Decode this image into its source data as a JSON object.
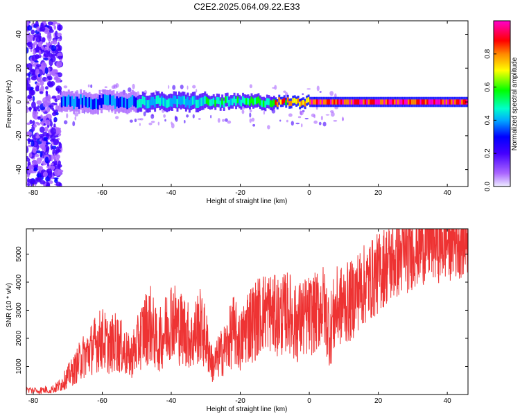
{
  "title": "C2E2.2025.064.09.22.E33",
  "colors": {
    "snr_line": "#ee3333",
    "colorbar": [
      "#eeeeff",
      "#aa66ff",
      "#4400ff",
      "#0000ff",
      "#00aaff",
      "#00ffcc",
      "#00ff00",
      "#ffff00",
      "#ff8800",
      "#ff0000",
      "#ff00cc"
    ]
  },
  "chart_data": [
    {
      "type": "heatmap",
      "xlabel": "Height of straight line (km)",
      "ylabel": "Frequency (Hz)",
      "xlim": [
        -82,
        46
      ],
      "ylim": [
        -50,
        48
      ],
      "xticks": [
        -80,
        -60,
        -40,
        -20,
        0,
        20,
        40
      ],
      "yticks": [
        40,
        20,
        0,
        -20,
        -40
      ],
      "x_tick_labels": [
        "-80",
        "-60",
        "-40",
        "-20",
        "0",
        "20",
        "40"
      ],
      "y_tick_labels": [
        "40",
        "20",
        "0",
        "-20",
        "-40"
      ],
      "description_of_signal": "Noise speckle for heights below about -72 km; narrow band near 0 Hz from about -72 km upward, strongest (red) above about 0 km",
      "band": {
        "center_hz": 0,
        "start_km": -72,
        "segments": [
          {
            "from": -72,
            "to": -50,
            "amplitude": 0.35,
            "half_width_hz": 3
          },
          {
            "from": -50,
            "to": -30,
            "amplitude": 0.45,
            "half_width_hz": 2.5
          },
          {
            "from": -30,
            "to": -10,
            "amplitude": 0.55,
            "half_width_hz": 2
          },
          {
            "from": -10,
            "to": 0,
            "amplitude": 0.75,
            "half_width_hz": 1.5
          },
          {
            "from": 0,
            "to": 46,
            "amplitude": 0.95,
            "half_width_hz": 1.5
          }
        ]
      },
      "colorbar": {
        "label": "Normalized spectral amplitude",
        "range": [
          0,
          1
        ],
        "ticks": [
          0.0,
          0.2,
          0.4,
          0.6,
          0.8
        ],
        "tick_labels": [
          "0.0",
          "0.2",
          "0.4",
          "0.6",
          "0.8"
        ]
      }
    },
    {
      "type": "line",
      "xlabel": "Height of straight line (km)",
      "ylabel": "SNR (10 * v/v)",
      "xlim": [
        -82,
        46
      ],
      "ylim": [
        0,
        5900
      ],
      "xticks": [
        -80,
        -60,
        -40,
        -20,
        0,
        20,
        40
      ],
      "yticks": [
        1000,
        2000,
        3000,
        4000,
        5000
      ],
      "x_tick_labels": [
        "-80",
        "-60",
        "-40",
        "-20",
        "0",
        "20",
        "40"
      ],
      "y_tick_labels": [
        "1000",
        "2000",
        "3000",
        "4000",
        "5000"
      ],
      "series": [
        {
          "x": [
            -82,
            -78,
            -74,
            -72,
            -70,
            -68,
            -66,
            -64,
            -62,
            -60,
            -58,
            -56,
            -54,
            -52,
            -50,
            -48,
            -46,
            -44,
            -42,
            -40,
            -38,
            -36,
            -34,
            -32,
            -30,
            -28,
            -26,
            -24,
            -22,
            -20,
            -18,
            -16,
            -14,
            -12,
            -10,
            -8,
            -6,
            -4,
            -2,
            0,
            2,
            4,
            6,
            8,
            10,
            12,
            14,
            16,
            18,
            20,
            22,
            24,
            26,
            28,
            30,
            32,
            34,
            36,
            38,
            40,
            42,
            44,
            46
          ],
          "y": [
            150,
            150,
            200,
            350,
            650,
            900,
            1300,
            1500,
            1800,
            2000,
            1700,
            1900,
            1600,
            1300,
            1700,
            2300,
            2500,
            1800,
            2200,
            2800,
            2400,
            2300,
            1900,
            2500,
            2000,
            1000,
            1400,
            1700,
            2300,
            1800,
            2500,
            2600,
            2900,
            3000,
            2800,
            2800,
            3000,
            2500,
            2700,
            2800,
            2900,
            3200,
            2300,
            3100,
            3200,
            3300,
            3700,
            3900,
            4100,
            4300,
            4600,
            4700,
            4900,
            5000,
            5200,
            5300,
            5400,
            5500,
            5400,
            5500,
            5500,
            5600,
            5600
          ]
        }
      ]
    }
  ]
}
